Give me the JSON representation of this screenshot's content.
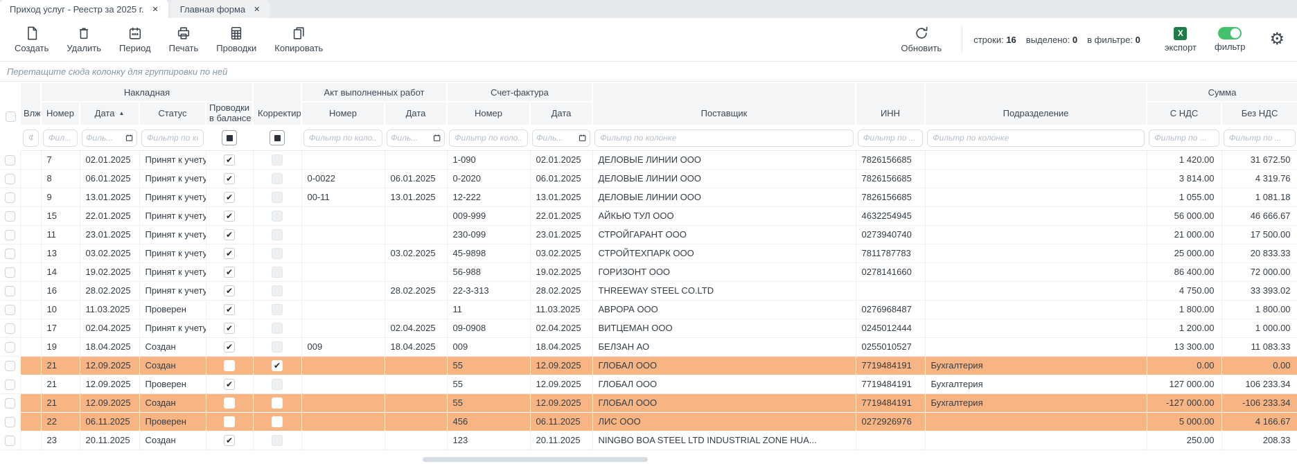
{
  "tabs": [
    {
      "label": "Приход услуг - Реестр за 2025 г.",
      "close_glyph": "✕",
      "active": true
    },
    {
      "label": "Главная форма",
      "close_glyph": "✕",
      "active": false
    }
  ],
  "toolbar": {
    "buttons": [
      {
        "label": "Создать"
      },
      {
        "label": "Удалить"
      },
      {
        "label": "Период"
      },
      {
        "label": "Печать"
      },
      {
        "label": "Проводки"
      },
      {
        "label": "Копировать"
      }
    ],
    "refresh_label": "Обновить",
    "stats": {
      "rows_label": "строки:",
      "rows_value": "16",
      "selected_label": "выделено:",
      "selected_value": "0",
      "filtered_label": "в фильтре:",
      "filtered_value": "0"
    },
    "export_label": "экспорт",
    "export_glyph": "X",
    "filter_label": "фильтр",
    "gear_glyph": "⚙",
    "colors": {
      "excel_green": "#1e7c48",
      "toggle_green": "#44c16d"
    }
  },
  "group_bar": {
    "text": "Перетащите сюда колонку для группировки по ней"
  },
  "table": {
    "check_glyph": "✔",
    "sort_glyph": "▲",
    "highlight_color": "#f8b583",
    "group_headers": {
      "nakladnaya": "Накладная",
      "akt": "Акт выполненных работ",
      "invoice": "Счет-фактура",
      "summa": "Сумма"
    },
    "columns": {
      "vlj": "Влж",
      "number": "Номер",
      "date": "Дата",
      "status": "Статус",
      "postings_line1": "Проводки",
      "postings_line2": "в балансе",
      "correction": "Корректир",
      "akt_number": "Номер",
      "akt_date": "Дата",
      "inv_number": "Номер",
      "inv_date": "Дата",
      "supplier": "Поставщик",
      "inn": "ИНН",
      "department": "Подразделение",
      "with_vat": "С НДС",
      "without_vat": "Без НДС"
    },
    "filters": {
      "vlj": "Ф.",
      "number": "Фил...",
      "date": "Филь...",
      "status": "Фильтр по ко...",
      "akt_number": "Фильтр по коло...",
      "akt_date": "Филь...",
      "inv_number": "Фильтр по коло...",
      "inv_date": "Филь...",
      "supplier": "Фильтр по колонке",
      "inn": "Фильтр по ...",
      "department": "Фильтр по колонке",
      "with_vat": "Фильтр по ...",
      "without_vat": "Фильтр по ..."
    },
    "rows": [
      {
        "number": "7",
        "date": "02.01.2025",
        "status": "Принят к учету",
        "postings": true,
        "correction": false,
        "akt_number": "",
        "akt_date": "",
        "inv_number": "1-090",
        "inv_date": "02.01.2025",
        "supplier": "ДЕЛОВЫЕ ЛИНИИ ООО",
        "inn": "7826156685",
        "department": "",
        "with_vat": "1 420.00",
        "without_vat": "31 672.50",
        "highlighted": false
      },
      {
        "number": "8",
        "date": "06.01.2025",
        "status": "Принят к учету",
        "postings": true,
        "correction": false,
        "akt_number": "0-0022",
        "akt_date": "06.01.2025",
        "inv_number": "0-2020",
        "inv_date": "06.01.2025",
        "supplier": "ДЕЛОВЫЕ ЛИНИИ ООО",
        "inn": "7826156685",
        "department": "",
        "with_vat": "3 814.00",
        "without_vat": "4 319.76",
        "highlighted": false
      },
      {
        "number": "9",
        "date": "13.01.2025",
        "status": "Принят к учету",
        "postings": true,
        "correction": false,
        "akt_number": "00-11",
        "akt_date": "13.01.2025",
        "inv_number": "12-222",
        "inv_date": "13.01.2025",
        "supplier": "ДЕЛОВЫЕ ЛИНИИ ООО",
        "inn": "7826156685",
        "department": "",
        "with_vat": "1 055.00",
        "without_vat": "1 081.18",
        "highlighted": false
      },
      {
        "number": "15",
        "date": "22.01.2025",
        "status": "Принят к учету",
        "postings": true,
        "correction": false,
        "akt_number": "",
        "akt_date": "",
        "inv_number": "009-999",
        "inv_date": "22.01.2025",
        "supplier": "АЙКЬЮ ТУЛ ООО",
        "inn": "4632254945",
        "department": "",
        "with_vat": "56 000.00",
        "without_vat": "46 666.67",
        "highlighted": false
      },
      {
        "number": "11",
        "date": "23.01.2025",
        "status": "Принят к учету",
        "postings": true,
        "correction": false,
        "akt_number": "",
        "akt_date": "",
        "inv_number": "230-099",
        "inv_date": "23.01.2025",
        "supplier": "СТРОЙГАРАНТ ООО",
        "inn": "0273940740",
        "department": "",
        "with_vat": "21 000.00",
        "without_vat": "17 500.00",
        "highlighted": false
      },
      {
        "number": "13",
        "date": "03.02.2025",
        "status": "Принят к учету",
        "postings": true,
        "correction": false,
        "akt_number": "",
        "akt_date": "03.02.2025",
        "inv_number": "45-9898",
        "inv_date": "03.02.2025",
        "supplier": "СТРОЙТЕХПАРК ООО",
        "inn": "7811787783",
        "department": "",
        "with_vat": "25 000.00",
        "without_vat": "20 833.33",
        "highlighted": false
      },
      {
        "number": "14",
        "date": "19.02.2025",
        "status": "Принят к учету",
        "postings": true,
        "correction": false,
        "akt_number": "",
        "akt_date": "",
        "inv_number": "56-988",
        "inv_date": "19.02.2025",
        "supplier": "ГОРИЗОНТ ООО",
        "inn": "0278141660",
        "department": "",
        "with_vat": "86 400.00",
        "without_vat": "72 000.00",
        "highlighted": false
      },
      {
        "number": "16",
        "date": "28.02.2025",
        "status": "Принят к учету",
        "postings": true,
        "correction": false,
        "akt_number": "",
        "akt_date": "28.02.2025",
        "inv_number": "22-3-313",
        "inv_date": "28.02.2025",
        "supplier": "THREEWAY STEEL CO.LTD",
        "inn": "",
        "department": "",
        "with_vat": "4 750.00",
        "without_vat": "33 393.02",
        "highlighted": false
      },
      {
        "number": "10",
        "date": "11.03.2025",
        "status": "Проверен",
        "postings": true,
        "correction": false,
        "akt_number": "",
        "akt_date": "",
        "inv_number": "11",
        "inv_date": "11.03.2025",
        "supplier": "АВРОРА ООО",
        "inn": "0276968487",
        "department": "",
        "with_vat": "1 800.00",
        "without_vat": "1 800.00",
        "highlighted": false
      },
      {
        "number": "17",
        "date": "02.04.2025",
        "status": "Принят к учету",
        "postings": true,
        "correction": false,
        "akt_number": "",
        "akt_date": "02.04.2025",
        "inv_number": "09-0908",
        "inv_date": "02.04.2025",
        "supplier": "ВИТЦЕМАН ООО",
        "inn": "0245012444",
        "department": "",
        "with_vat": "1 200.00",
        "without_vat": "1 000.00",
        "highlighted": false
      },
      {
        "number": "19",
        "date": "18.04.2025",
        "status": "Создан",
        "postings": true,
        "correction": false,
        "akt_number": "009",
        "akt_date": "18.04.2025",
        "inv_number": "009",
        "inv_date": "18.04.2025",
        "supplier": "БЕЛЗАН АО",
        "inn": "0255010527",
        "department": "",
        "with_vat": "13 300.00",
        "without_vat": "11 083.33",
        "highlighted": false
      },
      {
        "number": "21",
        "date": "12.09.2025",
        "status": "Создан",
        "postings": false,
        "correction": true,
        "akt_number": "",
        "akt_date": "",
        "inv_number": "55",
        "inv_date": "12.09.2025",
        "supplier": "ГЛОБАЛ ООО",
        "inn": "7719484191",
        "department": "Бухгалтерия",
        "with_vat": "0.00",
        "without_vat": "0.00",
        "highlighted": true
      },
      {
        "number": "21",
        "date": "12.09.2025",
        "status": "Проверен",
        "postings": true,
        "correction": false,
        "akt_number": "",
        "akt_date": "",
        "inv_number": "55",
        "inv_date": "12.09.2025",
        "supplier": "ГЛОБАЛ ООО",
        "inn": "7719484191",
        "department": "Бухгалтерия",
        "with_vat": "127 000.00",
        "without_vat": "106 233.34",
        "highlighted": false
      },
      {
        "number": "21",
        "date": "12.09.2025",
        "status": "Создан",
        "postings": false,
        "correction": false,
        "akt_number": "",
        "akt_date": "",
        "inv_number": "55",
        "inv_date": "12.09.2025",
        "supplier": "ГЛОБАЛ ООО",
        "inn": "7719484191",
        "department": "Бухгалтерия",
        "with_vat": "-127 000.00",
        "without_vat": "-106 233.34",
        "highlighted": true
      },
      {
        "number": "22",
        "date": "06.11.2025",
        "status": "Проверен",
        "postings": false,
        "correction": false,
        "akt_number": "",
        "akt_date": "",
        "inv_number": "456",
        "inv_date": "06.11.2025",
        "supplier": "ЛИС ООО",
        "inn": "0272926976",
        "department": "",
        "with_vat": "5 000.00",
        "without_vat": "4 166.67",
        "highlighted": true
      },
      {
        "number": "23",
        "date": "20.11.2025",
        "status": "Создан",
        "postings": true,
        "correction": false,
        "akt_number": "",
        "akt_date": "",
        "inv_number": "123",
        "inv_date": "20.11.2025",
        "supplier": "NINGBO BOA STEEL LTD INDUSTRIAL ZONE HUA...",
        "inn": "",
        "department": "",
        "with_vat": "250.00",
        "without_vat": "208.33",
        "highlighted": false
      }
    ]
  }
}
